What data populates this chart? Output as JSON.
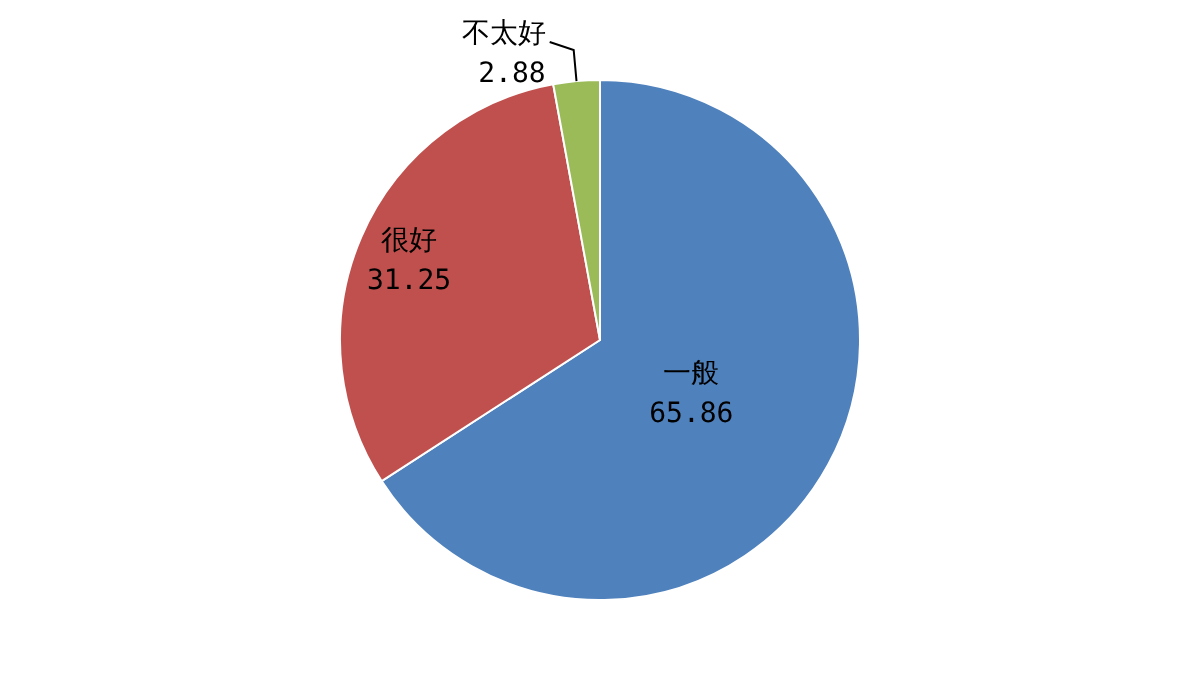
{
  "chart_data": {
    "type": "pie",
    "categories": [
      "一般",
      "很好",
      "不太好"
    ],
    "values": [
      65.86,
      31.25,
      2.88
    ],
    "colors": [
      "#4f81bd",
      "#c0504d",
      "#9bbb59"
    ],
    "data_labels": true
  }
}
